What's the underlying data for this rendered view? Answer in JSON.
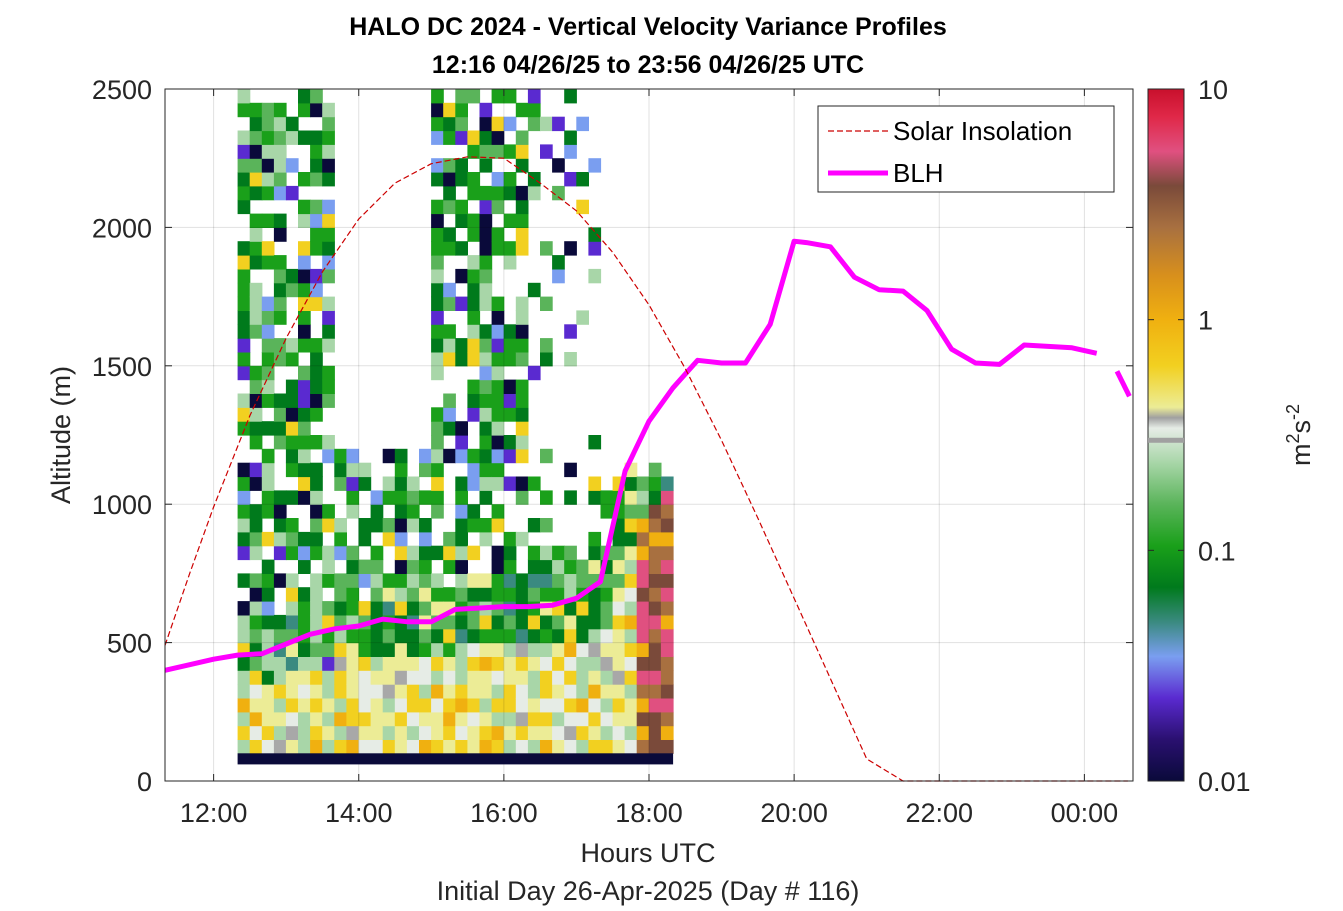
{
  "chart_data": {
    "type": "heatmap",
    "title_line1": "HALO DC 2024 - Vertical Velocity Variance Profiles",
    "title_line2": "12:16 04/26/25 to 23:56 04/26/25  UTC",
    "xlabel": "Hours UTC",
    "xlabel2": "Initial Day 26-Apr-2025 (Day # 116)",
    "ylabel": "Altitude (m)",
    "colorbar_label": "m²s⁻²",
    "colorbar_label_base": "m",
    "colorbar_label_sup1": "2",
    "colorbar_label_mid": "s",
    "colorbar_label_sup2": "-2",
    "xlim": [
      11.33,
      24.67
    ],
    "ylim": [
      0,
      2500
    ],
    "x_ticks": [
      {
        "value": 12,
        "label": "12:00"
      },
      {
        "value": 14,
        "label": "14:00"
      },
      {
        "value": 16,
        "label": "16:00"
      },
      {
        "value": 18,
        "label": "18:00"
      },
      {
        "value": 20,
        "label": "20:00"
      },
      {
        "value": 22,
        "label": "22:00"
      },
      {
        "value": 24,
        "label": "00:00"
      }
    ],
    "y_ticks": [
      {
        "value": 0,
        "label": "0"
      },
      {
        "value": 500,
        "label": "500"
      },
      {
        "value": 1000,
        "label": "1000"
      },
      {
        "value": 1500,
        "label": "1500"
      },
      {
        "value": 2000,
        "label": "2000"
      },
      {
        "value": 2500,
        "label": "2500"
      }
    ],
    "colorbar": {
      "scale": "log",
      "range": [
        0.01,
        10
      ],
      "ticks": [
        {
          "value": 0.01,
          "label": "0.01"
        },
        {
          "value": 0.1,
          "label": "0.1"
        },
        {
          "value": 1,
          "label": "1"
        },
        {
          "value": 10,
          "label": "10"
        }
      ]
    },
    "grid": true,
    "legend_position": "top-right",
    "legend": [
      {
        "name": "Solar Insolation",
        "color": "#cc0000",
        "style": "dashed"
      },
      {
        "name": "BLH",
        "color": "#ff00ff",
        "style": "solid"
      }
    ],
    "series": [
      {
        "name": "BLH",
        "x": [
          11.33,
          11.67,
          12.0,
          12.33,
          12.67,
          13.0,
          13.33,
          13.67,
          14.0,
          14.33,
          14.67,
          15.0,
          15.33,
          15.67,
          16.0,
          16.33,
          16.67,
          17.0,
          17.33,
          17.67,
          18.0,
          18.33,
          18.67,
          19.0,
          19.33,
          19.67,
          20.0,
          20.17,
          20.5,
          20.83,
          21.17,
          21.5,
          21.83,
          22.17,
          22.5,
          22.83,
          23.17,
          23.5,
          23.83,
          24.17
        ],
        "y": [
          400,
          420,
          440,
          455,
          460,
          495,
          530,
          550,
          560,
          585,
          575,
          575,
          620,
          625,
          630,
          630,
          635,
          660,
          720,
          1120,
          1300,
          1420,
          1520,
          1510,
          1510,
          1650,
          1950,
          1945,
          1930,
          1820,
          1775,
          1770,
          1700,
          1560,
          1510,
          1505,
          1575,
          1570,
          1565,
          1545
        ]
      },
      {
        "name": "BLH (segment 2)",
        "x": [
          24.45,
          24.62
        ],
        "y": [
          1480,
          1390
        ]
      },
      {
        "name": "Solar Insolation",
        "x": [
          11.33,
          11.67,
          12.0,
          12.5,
          13.0,
          13.5,
          14.0,
          14.5,
          15.0,
          15.5,
          16.0,
          16.5,
          17.0,
          17.5,
          18.0,
          18.5,
          19.0,
          19.5,
          20.0,
          20.5,
          21.0,
          21.5,
          22.0,
          22.5,
          23.0,
          23.5,
          23.73,
          23.8,
          24.6
        ],
        "y": [
          490,
          750,
          990,
          1320,
          1600,
          1840,
          2030,
          2160,
          2230,
          2255,
          2250,
          2160,
          2060,
          1910,
          1720,
          1490,
          1230,
          950,
          660,
          370,
          80,
          0,
          0,
          0,
          0,
          0,
          0,
          0,
          0
        ]
      }
    ],
    "heatmap": {
      "time_start": 12.33,
      "time_step": 0.1667,
      "columns": 36,
      "alt_start": 100,
      "alt_step": 50,
      "rows": 48,
      "colorbar_tick_marker_value": 0.3
    }
  }
}
